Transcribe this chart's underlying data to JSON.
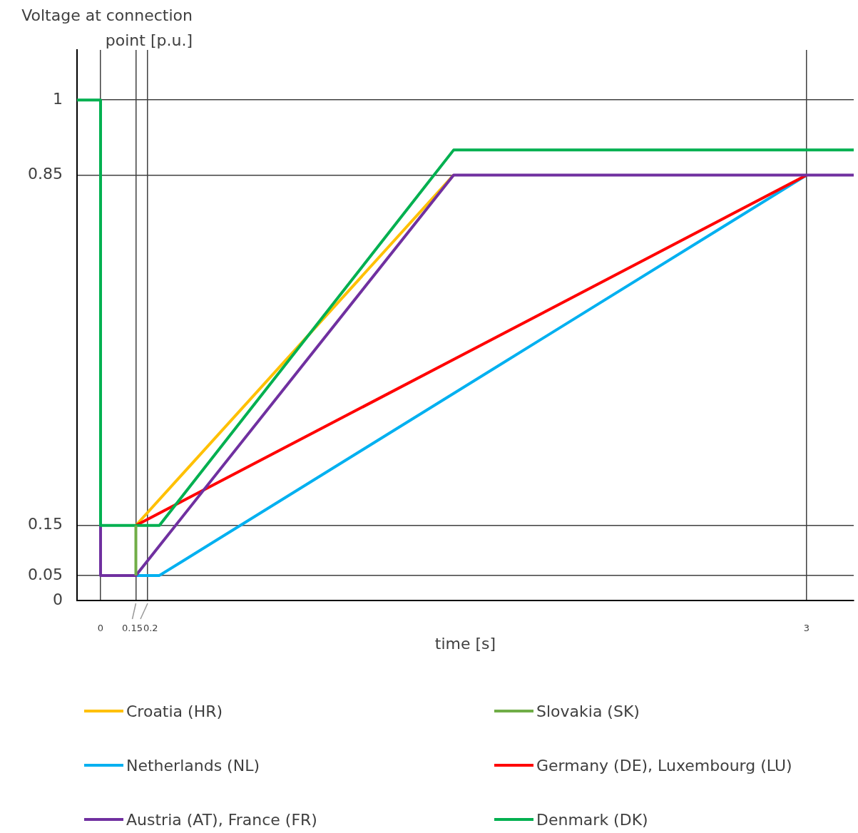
{
  "chart_data": {
    "type": "line",
    "ylabel": "Voltage at connection point [p.u.]",
    "xlabel": "time [s]",
    "xlim": [
      -0.1,
      3.2
    ],
    "ylim": [
      0,
      1.1
    ],
    "xticks": [
      0,
      0.15,
      0.2,
      3
    ],
    "yticks": [
      0,
      0.05,
      0.15,
      0.85,
      1
    ],
    "grid": true,
    "legend": "bottom",
    "marker": "none",
    "line_style": "solid",
    "series": [
      {
        "name": "Croatia (HR)",
        "color": "#ffc000",
        "x": [
          0.15,
          1.5
        ],
        "values": [
          0.15,
          0.85
        ]
      },
      {
        "name": "Slovakia (SK)",
        "color": "#70ad47",
        "x": [
          0.15,
          0.15
        ],
        "values": [
          0.05,
          0.15
        ]
      },
      {
        "name": "Netherlands (NL)",
        "color": "#00b0f0",
        "x": [
          0.15,
          0.25,
          3
        ],
        "values": [
          0.05,
          0.05,
          0.85
        ]
      },
      {
        "name": "Germany (DE), Luxembourg (LU)",
        "color": "#ff0000",
        "x": [
          0.15,
          3
        ],
        "values": [
          0.15,
          0.85
        ]
      },
      {
        "name": "Austria (AT), France (FR)",
        "color": "#7030a0",
        "x": [
          0,
          0,
          0.15,
          1.5,
          3.2
        ],
        "values": [
          0.15,
          0.05,
          0.05,
          0.85,
          0.85
        ]
      },
      {
        "name": "Denmark (DK)",
        "color": "#00b050",
        "x": [
          -0.1,
          0,
          0,
          0.25,
          1.5,
          3.2
        ],
        "values": [
          1,
          1,
          0.15,
          0.15,
          0.9,
          0.9
        ]
      }
    ]
  }
}
